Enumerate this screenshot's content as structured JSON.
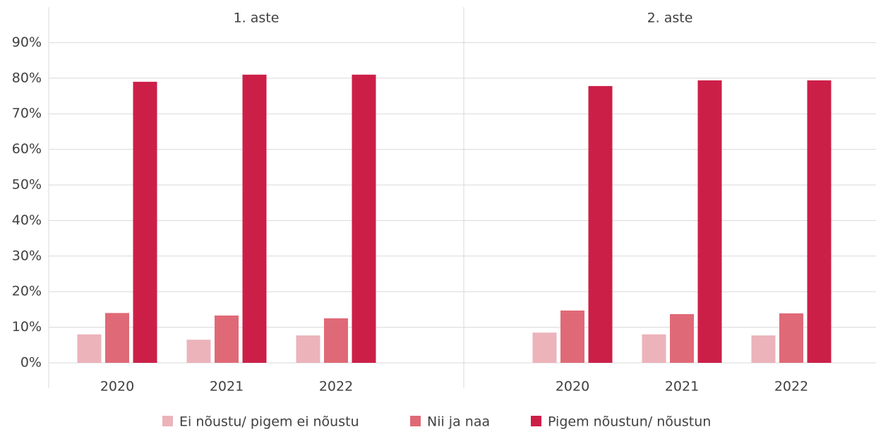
{
  "chart_data": {
    "type": "bar",
    "ylim": [
      0,
      100
    ],
    "yticks": [
      {
        "value": 0,
        "label": "0%"
      },
      {
        "value": 10,
        "label": "10%"
      },
      {
        "value": 20,
        "label": "20%"
      },
      {
        "value": 30,
        "label": "30%"
      },
      {
        "value": 40,
        "label": "40%"
      },
      {
        "value": 50,
        "label": "50%"
      },
      {
        "value": 60,
        "label": "60%"
      },
      {
        "value": 70,
        "label": "70%"
      },
      {
        "value": 80,
        "label": "80%"
      },
      {
        "value": 90,
        "label": "90%"
      }
    ],
    "grid": true,
    "legend": "bottom",
    "series": [
      {
        "name": "Ei nõustu/ pigem ei nõustu",
        "color": "#ecb3ba"
      },
      {
        "name": "Nii ja naa",
        "color": "#e06977"
      },
      {
        "name": "Pigem nõustun/ nõustun",
        "color": "#cc1f48"
      }
    ],
    "panels": [
      {
        "title": "1. aste",
        "categories": [
          "2020",
          "2021",
          "2022"
        ],
        "values": [
          [
            8,
            6.5,
            7.7
          ],
          [
            14,
            13.3,
            12.5
          ],
          [
            79,
            81,
            81
          ]
        ]
      },
      {
        "title": "2. aste",
        "categories": [
          "2020",
          "2021",
          "2022"
        ],
        "values": [
          [
            8.5,
            8,
            7.7
          ],
          [
            14.7,
            13.7,
            13.9
          ],
          [
            77.8,
            79.4,
            79.4
          ]
        ]
      }
    ]
  }
}
